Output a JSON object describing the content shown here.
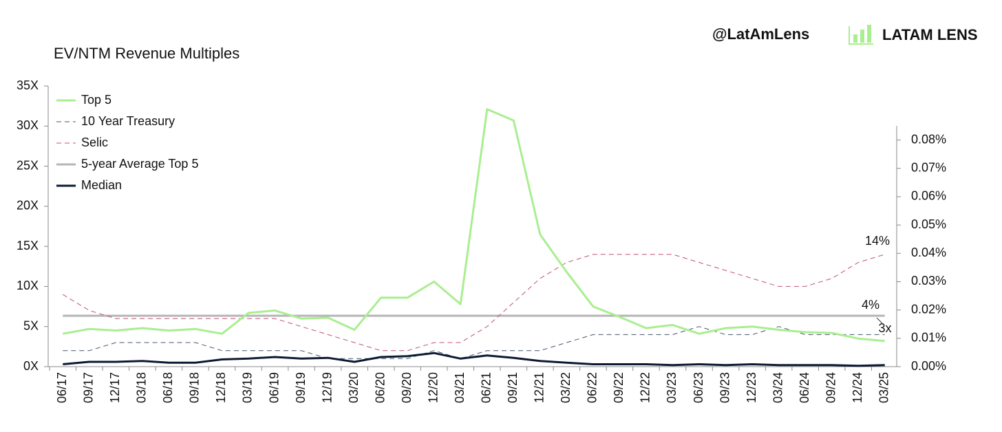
{
  "brand": {
    "handle": "@LatAmLens",
    "name": "LATAM LENS"
  },
  "chart_data": {
    "type": "line",
    "title": "EV/NTM Revenue Multiples",
    "categories": [
      "06/17",
      "09/17",
      "12/17",
      "03/18",
      "06/18",
      "09/18",
      "12/18",
      "03/19",
      "06/19",
      "09/19",
      "12/19",
      "03/20",
      "06/20",
      "09/20",
      "12/20",
      "03/21",
      "06/21",
      "09/21",
      "12/21",
      "03/22",
      "06/22",
      "09/22",
      "12/22",
      "03/23",
      "06/23",
      "09/23",
      "12/23",
      "03/24",
      "06/24",
      "09/24",
      "12/24",
      "03/25"
    ],
    "series": [
      {
        "name": "Top 5",
        "color": "#a9ee90",
        "width": 3,
        "dash": false,
        "values": [
          4.1,
          4.7,
          4.5,
          4.8,
          4.5,
          4.7,
          4.1,
          6.7,
          7.0,
          6.0,
          6.1,
          4.6,
          8.6,
          8.6,
          10.6,
          7.8,
          32.1,
          30.7,
          16.5,
          11.8,
          7.5,
          6.2,
          4.8,
          5.2,
          4.1,
          4.8,
          5.0,
          4.6,
          4.3,
          4.2,
          3.5,
          3.2
        ]
      },
      {
        "name": "10 Year Treasury",
        "color": "#44546a",
        "width": 1,
        "dash": true,
        "values": [
          2,
          2,
          3,
          3,
          3,
          3,
          2,
          2,
          2,
          2,
          1,
          1,
          1,
          1,
          2,
          1,
          2,
          2,
          2,
          3,
          4,
          4,
          4,
          4,
          5,
          4,
          4,
          5,
          4,
          4,
          4,
          4
        ]
      },
      {
        "name": "Selic",
        "color": "#c0506e",
        "width": 1,
        "dash": true,
        "values": [
          9,
          7,
          6,
          6,
          6,
          6,
          6,
          6,
          6,
          5,
          4,
          3,
          2,
          2,
          3,
          3,
          5,
          8,
          11,
          13,
          14,
          14,
          14,
          14,
          13,
          12,
          11,
          10,
          10,
          11,
          13,
          14
        ]
      },
      {
        "name": "5-year Average Top 5",
        "color": "#b4b4b4",
        "width": 3,
        "dash": false,
        "values": [
          6.35,
          6.35,
          6.35,
          6.35,
          6.35,
          6.35,
          6.35,
          6.35,
          6.35,
          6.35,
          6.35,
          6.35,
          6.35,
          6.35,
          6.35,
          6.35,
          6.35,
          6.35,
          6.35,
          6.35,
          6.35,
          6.35,
          6.35,
          6.35,
          6.35,
          6.35,
          6.35,
          6.35,
          6.35,
          6.35,
          6.35,
          6.35
        ]
      },
      {
        "name": "Median",
        "color": "#0d1a33",
        "width": 3,
        "dash": false,
        "values": [
          0.3,
          0.6,
          0.6,
          0.7,
          0.5,
          0.5,
          0.9,
          1.0,
          1.2,
          1.0,
          1.1,
          0.6,
          1.2,
          1.3,
          1.7,
          1.0,
          1.4,
          1.1,
          0.7,
          0.5,
          0.3,
          0.3,
          0.3,
          0.2,
          0.3,
          0.2,
          0.3,
          0.2,
          0.2,
          0.2,
          0.1,
          0.2
        ]
      }
    ],
    "ylim": [
      0,
      35
    ],
    "yticks": [
      {
        "value": 0,
        "label": "0X"
      },
      {
        "value": 5,
        "label": "5X"
      },
      {
        "value": 10,
        "label": "10X"
      },
      {
        "value": 15,
        "label": "15X"
      },
      {
        "value": 20,
        "label": "20X"
      },
      {
        "value": 25,
        "label": "25X"
      },
      {
        "value": 30,
        "label": "30X"
      },
      {
        "value": 35,
        "label": "35X"
      }
    ],
    "y2lim": [
      0,
      0.085
    ],
    "y2ticks": [
      {
        "value": 0,
        "label": "0.00%"
      },
      {
        "value": 0.01,
        "label": "0.01%"
      },
      {
        "value": 0.02,
        "label": "0.02%"
      },
      {
        "value": 0.03,
        "label": "0.03%"
      },
      {
        "value": 0.04,
        "label": "0.04%"
      },
      {
        "value": 0.05,
        "label": "0.05%"
      },
      {
        "value": 0.06,
        "label": "0.06%"
      },
      {
        "value": 0.07,
        "label": "0.07%"
      },
      {
        "value": 0.08,
        "label": "0.08%"
      }
    ],
    "annotations": [
      "14%",
      "4%",
      "3x"
    ],
    "legend": "top-left",
    "grid": false
  }
}
